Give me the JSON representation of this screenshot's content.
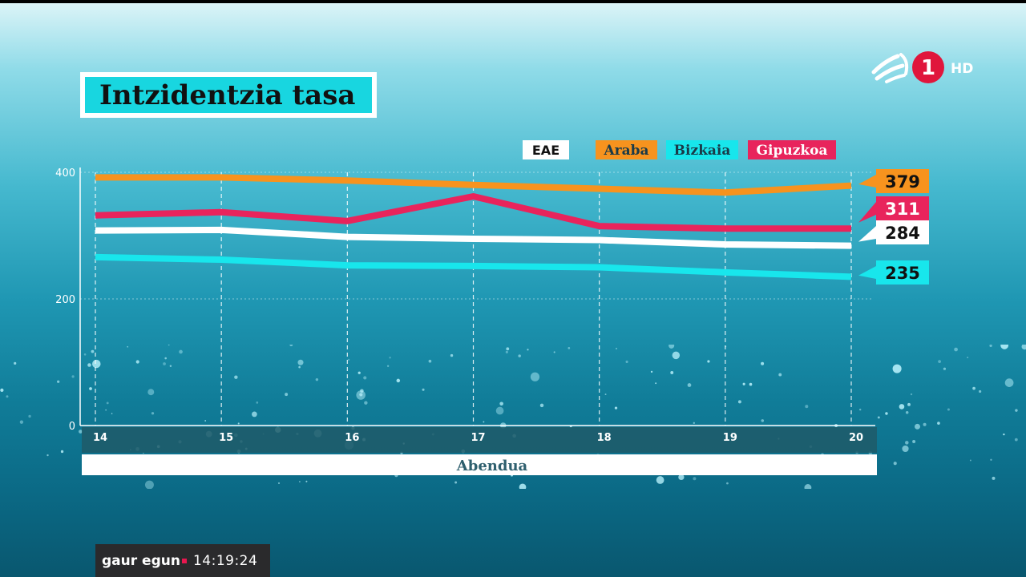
{
  "title": "Intzidentzia tasa",
  "channel": {
    "number": "1",
    "quality": "HD"
  },
  "footer": {
    "brand": "gaur egun",
    "time": "14:19:24"
  },
  "colors": {
    "EAE": "#ffffff",
    "Araba": "#f7931e",
    "Bizkaia": "#18e6ec",
    "Gipuzkoa": "#e8245c",
    "EAE_label_text": "#111111"
  },
  "chart_data": {
    "type": "line",
    "title": "Intzidentzia tasa",
    "xlabel": "Abendua",
    "ylabel": "",
    "x": [
      14,
      15,
      16,
      17,
      18,
      19,
      20
    ],
    "ylim": [
      0,
      400
    ],
    "yticks": [
      0,
      200,
      400
    ],
    "grid": true,
    "legend_position": "top",
    "series": [
      {
        "name": "EAE",
        "values": [
          308,
          309,
          298,
          295,
          293,
          286,
          284
        ],
        "end_label": "284"
      },
      {
        "name": "Araba",
        "values": [
          392,
          392,
          387,
          380,
          374,
          368,
          379
        ],
        "end_label": "379"
      },
      {
        "name": "Bizkaia",
        "values": [
          266,
          262,
          253,
          252,
          250,
          242,
          235
        ],
        "end_label": "235"
      },
      {
        "name": "Gipuzkoa",
        "values": [
          332,
          337,
          323,
          362,
          315,
          311,
          311
        ],
        "end_label": "311"
      }
    ]
  }
}
